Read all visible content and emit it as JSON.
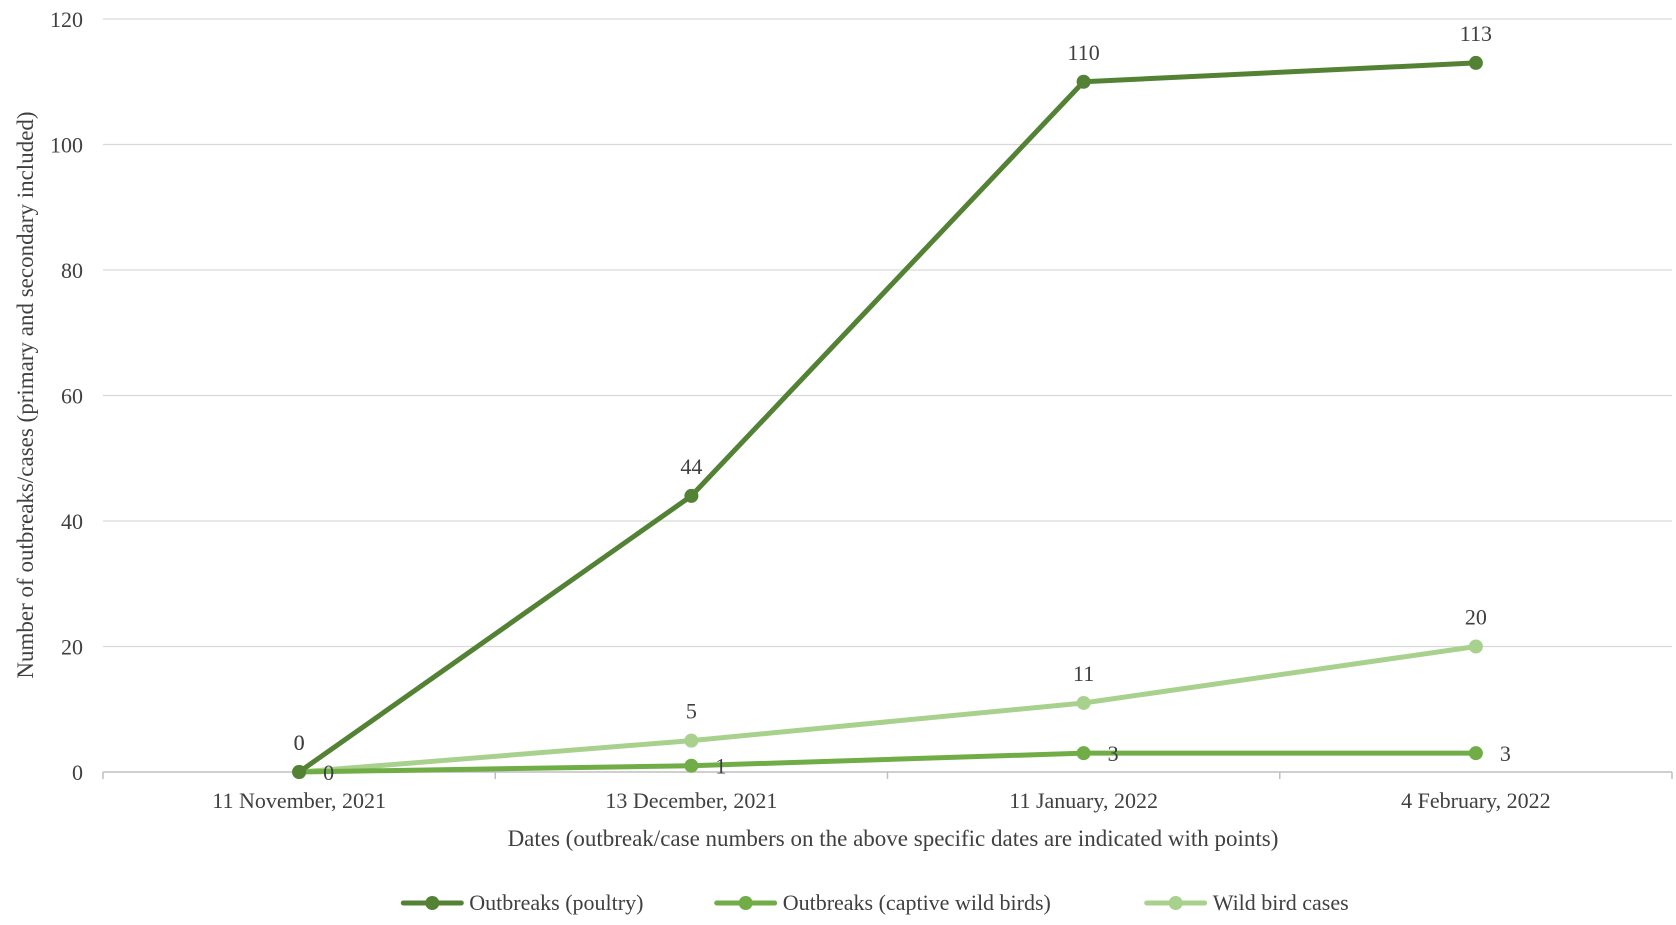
{
  "chart_data": {
    "type": "line",
    "categories": [
      "11 November, 2021",
      "13 December, 2021",
      "11 January, 2022",
      "4 February, 2022"
    ],
    "series": [
      {
        "name": "Outbreaks (poultry)",
        "values": [
          0,
          44,
          110,
          113
        ],
        "color": "#548235",
        "labels": [
          "0",
          "44",
          "110",
          "113"
        ],
        "label_pos": "above"
      },
      {
        "name": "Outbreaks (captive wild birds)",
        "values": [
          0,
          1,
          3,
          3
        ],
        "color": "#70AD47",
        "labels": [
          "0",
          "1",
          "3",
          "3"
        ],
        "label_pos": "right"
      },
      {
        "name": "Wild bird cases",
        "values": [
          0,
          5,
          11,
          20
        ],
        "color": "#A9D18E",
        "labels": [
          "0",
          "5",
          "11",
          "20"
        ],
        "label_pos": "above"
      }
    ],
    "title": "",
    "xlabel": "Dates (outbreak/case numbers on the above specific dates are indicated with points)",
    "ylabel": "Number of outbreaks/cases (primary and secondary included)",
    "ylim": [
      0,
      120
    ],
    "yticks": [
      "0",
      "20",
      "40",
      "60",
      "80",
      "100",
      "120"
    ],
    "grid": true,
    "legend_position": "bottom",
    "gridline_color": "#D9D9D9",
    "axis_color": "#BFBFBF"
  }
}
